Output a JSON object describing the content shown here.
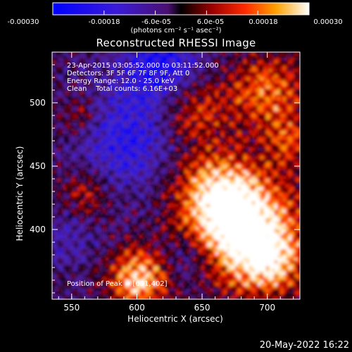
{
  "colorbar": {
    "tick_labels": [
      "-0.00030",
      "-0.00018",
      "-6.0e-05",
      "6.0e-05",
      "0.00018",
      "0.00030"
    ],
    "range": [
      -0.0003,
      0.0003
    ],
    "units_label": "(photons cm⁻² s⁻¹ asec⁻²)"
  },
  "title": "Reconstructed RHESSI Image",
  "annotations": {
    "time_range": "23-Apr-2015 03:05:52.000 to 03:11:52.000",
    "detectors": "Detectors: 3F 5F 6F 7F 8F 9F, Att 0",
    "energy": "Energy Range: 12.0 - 25.0 keV",
    "method": "Clean    Total counts: 6.16E+03",
    "peak": "Position of Peak = [681,402]"
  },
  "footer": {
    "date": "20-May-2022 16:22"
  },
  "chart_data": {
    "type": "heatmap",
    "title": "Reconstructed RHESSI Image",
    "xlabel": "Heliocentric X (arcsec)",
    "ylabel": "Heliocentric Y (arcsec)",
    "xlim": [
      535,
      725
    ],
    "ylim": [
      345,
      540
    ],
    "x_ticks": [
      550,
      600,
      650,
      700
    ],
    "y_ticks": [
      400,
      450,
      500
    ],
    "colormap": "blue-purple-black-red-yellow-white",
    "colorbar_range": [
      -0.0003,
      0.0003
    ],
    "peak_position": [
      681,
      402
    ]
  }
}
